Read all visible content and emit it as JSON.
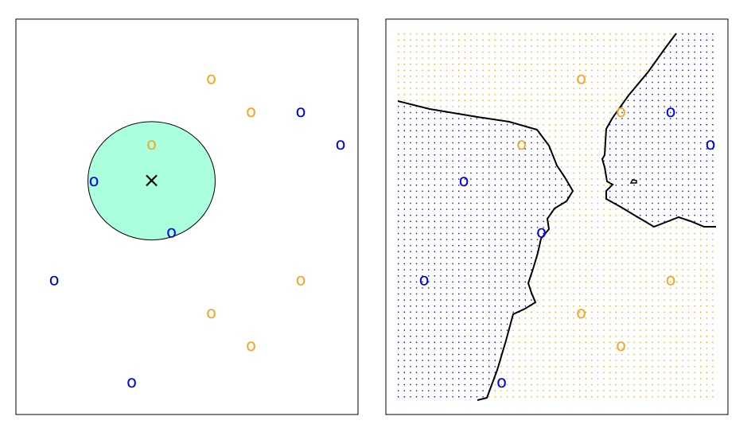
{
  "chart_data": [
    {
      "type": "scatter",
      "panel": "left",
      "title": "",
      "xlabel": "",
      "ylabel": "",
      "xlim": [
        0,
        8.5
      ],
      "ylim": [
        0,
        9.8
      ],
      "colors": {
        "blue": "#0000ee",
        "orange": "#f5a623",
        "circle": "#aaffdd"
      },
      "marker_glyph": "o",
      "test_point": {
        "x": 3.25,
        "y": 6.3,
        "glyph": "×"
      },
      "neighborhood": {
        "center": [
          3.25,
          6.3
        ],
        "rx": 1.6,
        "ry": 1.47
      },
      "series": [
        {
          "color": "blue",
          "points": [
            [
              1.8,
              6.3
            ],
            [
              3.75,
              4.9
            ],
            [
              7.0,
              8.2
            ],
            [
              8.0,
              7.3
            ],
            [
              0.8,
              3.6
            ],
            [
              2.75,
              0.8
            ]
          ]
        },
        {
          "color": "orange",
          "points": [
            [
              4.75,
              9.1
            ],
            [
              5.75,
              8.2
            ],
            [
              3.25,
              7.3
            ],
            [
              7.0,
              3.6
            ],
            [
              4.75,
              2.7
            ],
            [
              5.75,
              1.8
            ]
          ]
        }
      ]
    },
    {
      "type": "scatter",
      "panel": "right",
      "title": "",
      "xlabel": "",
      "ylabel": "",
      "xlim": [
        0,
        8.5
      ],
      "ylim": [
        0,
        9.8
      ],
      "colors": {
        "blue": "#0000ee",
        "orange": "#f5a623",
        "boundary": "#000000"
      },
      "marker_glyph": "o",
      "series": [
        {
          "color": "blue",
          "points": [
            [
              1.8,
              6.3
            ],
            [
              3.75,
              4.9
            ],
            [
              7.0,
              8.2
            ],
            [
              8.0,
              7.3
            ],
            [
              0.8,
              3.6
            ],
            [
              2.75,
              0.8
            ]
          ]
        },
        {
          "color": "orange",
          "points": [
            [
              4.75,
              9.1
            ],
            [
              5.75,
              8.2
            ],
            [
              3.25,
              7.3
            ],
            [
              7.0,
              3.6
            ],
            [
              4.75,
              2.7
            ],
            [
              5.75,
              1.8
            ]
          ]
        }
      ]
    }
  ]
}
